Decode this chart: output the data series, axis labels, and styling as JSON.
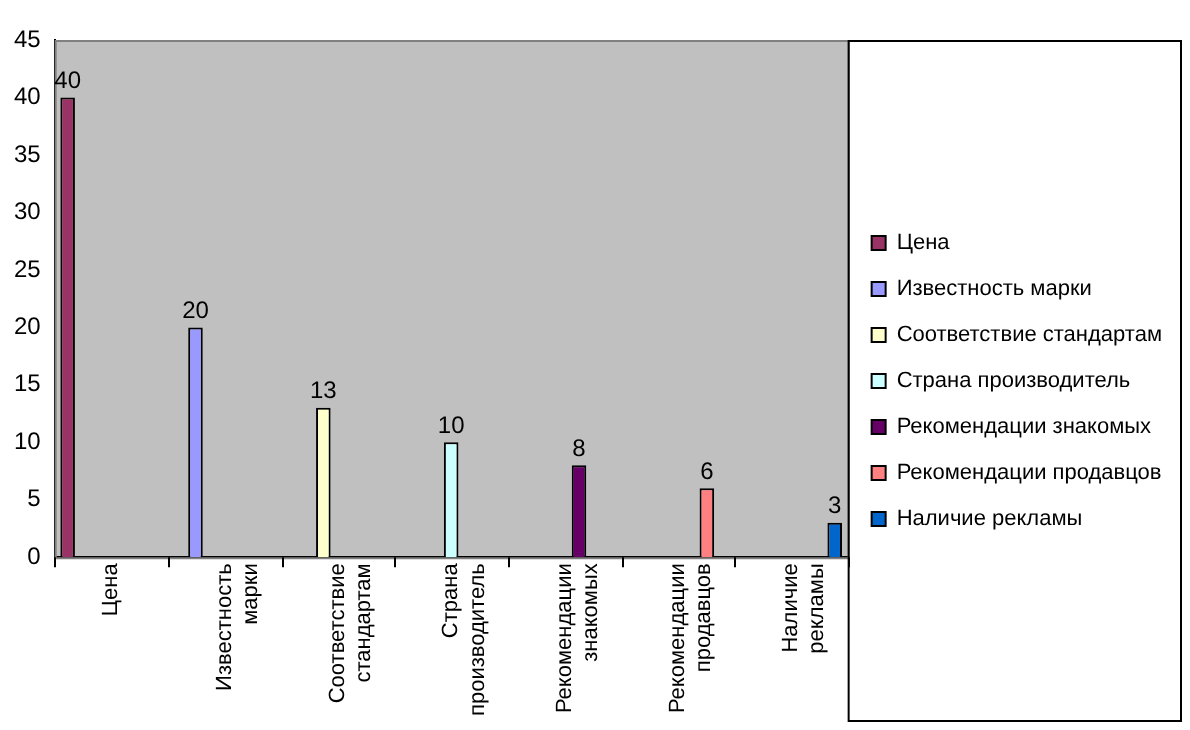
{
  "chart_data": {
    "type": "bar",
    "categories": [
      "Цена",
      "Известность марки",
      "Соответствие стандартам",
      "Страна производитель",
      "Рекомендации знакомых",
      "Рекомендации продавцов",
      "Наличие рекламы"
    ],
    "series": [
      {
        "name": "Цена",
        "color": "#993366",
        "values": [
          40,
          null,
          null,
          null,
          null,
          null,
          null
        ]
      },
      {
        "name": "Известность марки",
        "color": "#9999ff",
        "values": [
          null,
          20,
          null,
          null,
          null,
          null,
          null
        ]
      },
      {
        "name": "Соответствие стандартам",
        "color": "#ffffcc",
        "values": [
          null,
          null,
          13,
          null,
          null,
          null,
          null
        ]
      },
      {
        "name": "Страна производитель",
        "color": "#ccffff",
        "values": [
          null,
          null,
          null,
          10,
          null,
          null,
          null
        ]
      },
      {
        "name": "Рекомендации знакомых",
        "color": "#660066",
        "values": [
          null,
          null,
          null,
          null,
          8,
          null,
          null
        ]
      },
      {
        "name": "Рекомендации продавцов",
        "color": "#ff8080",
        "values": [
          null,
          null,
          null,
          null,
          null,
          6,
          null
        ]
      },
      {
        "name": "Наличие рекламы",
        "color": "#0066cc",
        "values": [
          null,
          null,
          null,
          null,
          null,
          null,
          3
        ]
      }
    ],
    "ylim": [
      0,
      45
    ],
    "yticks": [
      0,
      5,
      10,
      15,
      20,
      25,
      30,
      35,
      40,
      45
    ],
    "grid": false,
    "legend": "right",
    "data_labels": true
  }
}
